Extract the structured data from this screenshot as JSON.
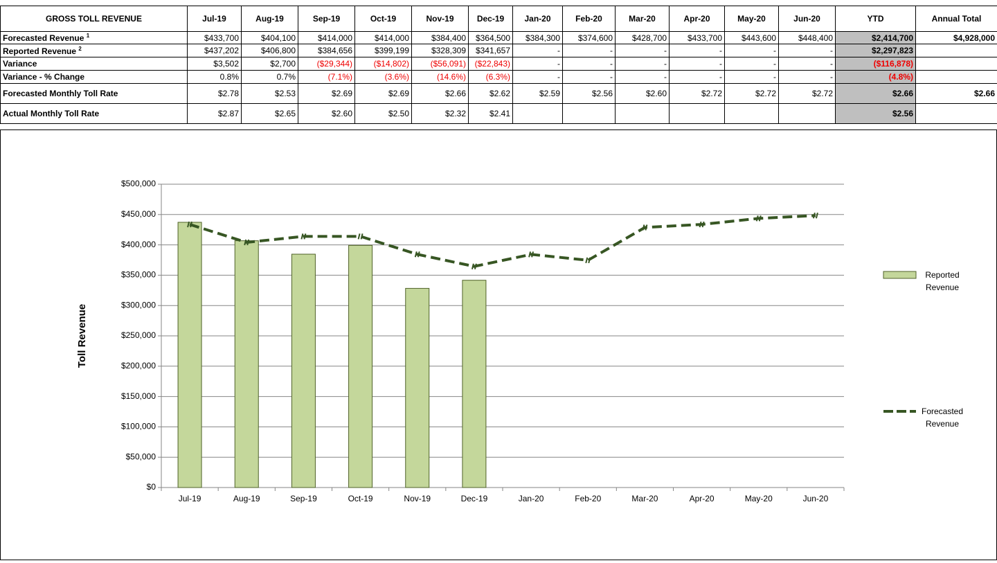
{
  "table": {
    "columns": [
      "GROSS TOLL REVENUE",
      "Jul-19",
      "Aug-19",
      "Sep-19",
      "Oct-19",
      "Nov-19",
      "Dec-19",
      "Jan-20",
      "Feb-20",
      "Mar-20",
      "Apr-20",
      "May-20",
      "Jun-20",
      "YTD",
      "Annual Total"
    ],
    "rows": [
      {
        "label": "Forecasted Revenue",
        "note": "1",
        "cells": [
          "$433,700",
          "$404,100",
          "$414,000",
          "$414,000",
          "$384,400",
          "$364,500",
          "$384,300",
          "$374,600",
          "$428,700",
          "$433,700",
          "$443,600",
          "$448,400",
          "$2,414,700",
          "$4,928,000"
        ]
      },
      {
        "label": "Reported Revenue",
        "note": "2",
        "cells": [
          "$437,202",
          "$406,800",
          "$384,656",
          "$399,199",
          "$328,309",
          "$341,657",
          "-",
          "-",
          "-",
          "-",
          "-",
          "-",
          "$2,297,823",
          null
        ]
      },
      {
        "label": "Variance",
        "cells": [
          "$3,502",
          "$2,700",
          "($29,344)",
          "($14,802)",
          "($56,091)",
          "($22,843)",
          "-",
          "-",
          "-",
          "-",
          "-",
          "-",
          "($116,878)",
          null
        ]
      },
      {
        "label": "Variance - % Change",
        "cells": [
          "0.8%",
          "0.7%",
          "(7.1%)",
          "(3.6%)",
          "(14.6%)",
          "(6.3%)",
          "-",
          "-",
          "-",
          "-",
          "-",
          "-",
          "(4.8%)",
          null
        ]
      },
      {
        "label": "Forecasted Monthly Toll Rate",
        "cells": [
          "$2.78",
          "$2.53",
          "$2.69",
          "$2.69",
          "$2.66",
          "$2.62",
          "$2.59",
          "$2.56",
          "$2.60",
          "$2.72",
          "$2.72",
          "$2.72",
          "$2.66",
          "$2.66"
        ]
      },
      {
        "label": "Actual Monthly Toll Rate",
        "cells": [
          "$2.87",
          "$2.65",
          "$2.60",
          "$2.50",
          "$2.32",
          "$2.41",
          null,
          null,
          null,
          null,
          null,
          null,
          "$2.56",
          null
        ]
      }
    ]
  },
  "chart_data": {
    "type": "bar_line",
    "ylabel": "Toll Revenue",
    "categories": [
      "Jul-19",
      "Aug-19",
      "Sep-19",
      "Oct-19",
      "Nov-19",
      "Dec-19",
      "Jan-20",
      "Feb-20",
      "Mar-20",
      "Apr-20",
      "May-20",
      "Jun-20"
    ],
    "series": [
      {
        "name": "Reported Revenue",
        "kind": "bar",
        "color": "#c4d79b",
        "edge": "#4f6228",
        "values": [
          437202,
          406800,
          384656,
          399199,
          328309,
          341657,
          null,
          null,
          null,
          null,
          null,
          null
        ]
      },
      {
        "name": "Forecasted Revenue",
        "kind": "line",
        "color": "#375623",
        "values": [
          433700,
          404100,
          414000,
          414000,
          384400,
          364500,
          384300,
          374600,
          428700,
          433700,
          443600,
          448400
        ]
      }
    ],
    "ylim": [
      0,
      500000
    ],
    "yticks": [
      {
        "value": 0,
        "label": "$0"
      },
      {
        "value": 50000,
        "label": "$50,000"
      },
      {
        "value": 100000,
        "label": "$100,000"
      },
      {
        "value": 150000,
        "label": "$150,000"
      },
      {
        "value": 200000,
        "label": "$200,000"
      },
      {
        "value": 250000,
        "label": "$250,000"
      },
      {
        "value": 300000,
        "label": "$300,000"
      },
      {
        "value": 350000,
        "label": "$350,000"
      },
      {
        "value": 400000,
        "label": "$400,000"
      },
      {
        "value": 450000,
        "label": "$450,000"
      },
      {
        "value": 500000,
        "label": "$500,000"
      }
    ],
    "grid": true
  }
}
